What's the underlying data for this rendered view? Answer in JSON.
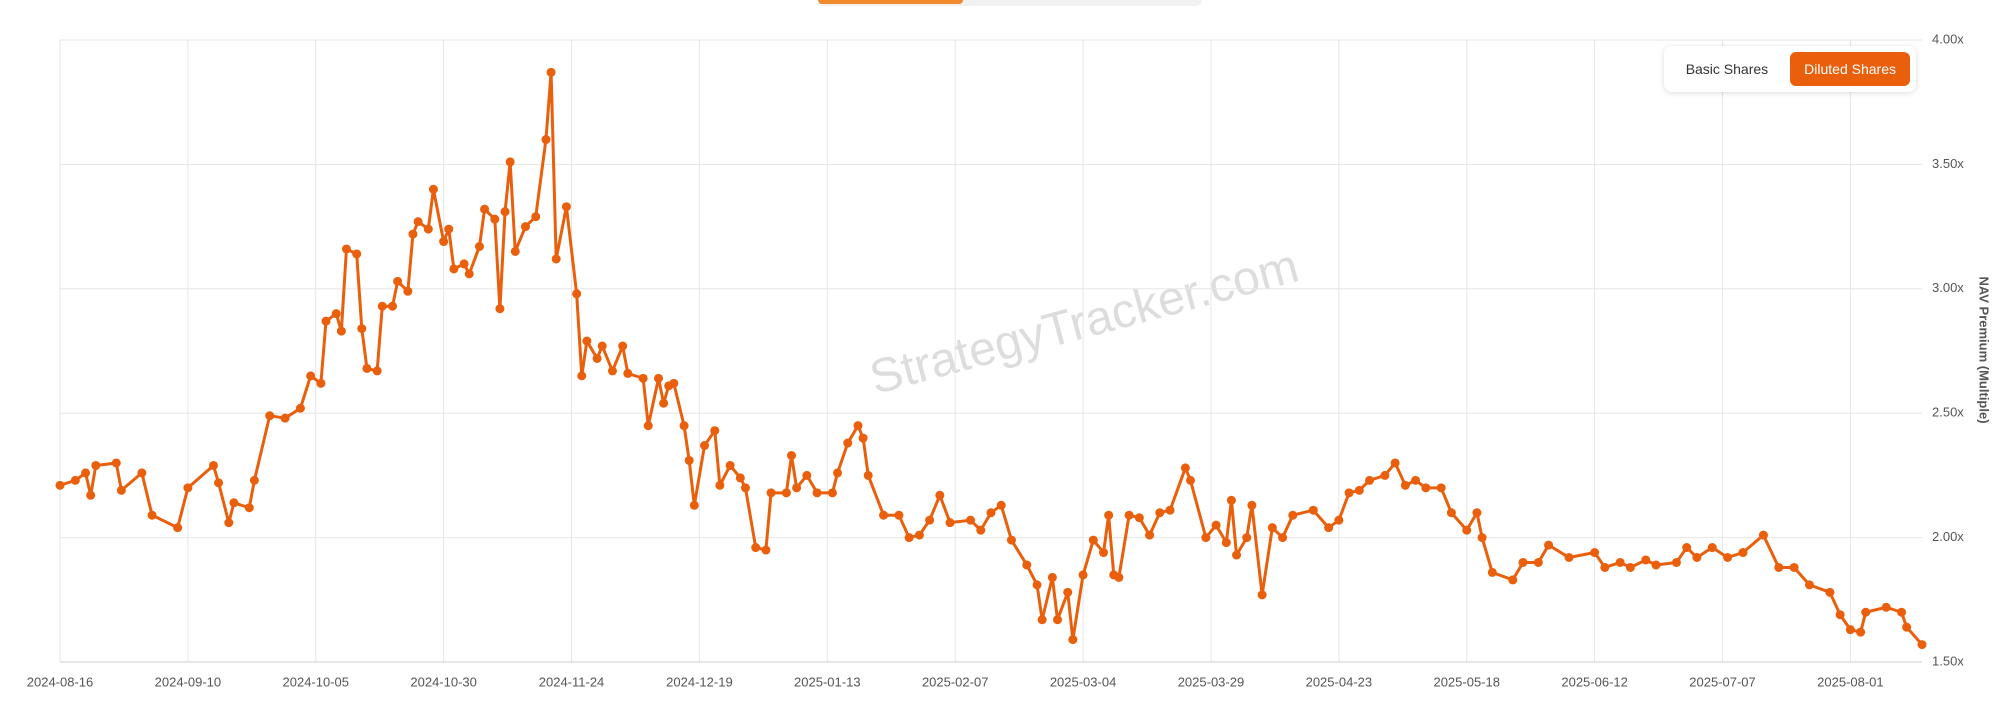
{
  "chart_data": {
    "type": "line",
    "y_label": "NAV Premium (Multiple)",
    "watermark": "StrategyTracker.com",
    "toggle_options": [
      "Basic Shares",
      "Diluted Shares"
    ],
    "active_option": 1,
    "color": "#e95f0c",
    "grid": true,
    "y_axis_side": "right",
    "xlim": [
      "2024-08-16",
      "2025-08-15"
    ],
    "xticks": [
      "2024-08-16",
      "2024-09-10",
      "2024-10-05",
      "2024-10-30",
      "2024-11-24",
      "2024-12-19",
      "2025-01-13",
      "2025-02-07",
      "2025-03-04",
      "2025-03-29",
      "2025-04-23",
      "2025-05-18",
      "2025-06-12",
      "2025-07-07",
      "2025-08-01"
    ],
    "ylim": [
      1.5,
      4
    ],
    "yticks": [
      {
        "value": 1.5,
        "label": "1.50x"
      },
      {
        "value": 2,
        "label": "2.00x"
      },
      {
        "value": 2.5,
        "label": "2.50x"
      },
      {
        "value": 3,
        "label": "3.00x"
      },
      {
        "value": 3.5,
        "label": "3.50x"
      },
      {
        "value": 4,
        "label": "4.00x"
      }
    ],
    "x": [
      "2024-08-16",
      "2024-08-19",
      "2024-08-21",
      "2024-08-22",
      "2024-08-23",
      "2024-08-27",
      "2024-08-28",
      "2024-09-01",
      "2024-09-03",
      "2024-09-08",
      "2024-09-10",
      "2024-09-15",
      "2024-09-16",
      "2024-09-18",
      "2024-09-19",
      "2024-09-22",
      "2024-09-23",
      "2024-09-26",
      "2024-09-29",
      "2024-10-02",
      "2024-10-04",
      "2024-10-06",
      "2024-10-07",
      "2024-10-09",
      "2024-10-10",
      "2024-10-11",
      "2024-10-13",
      "2024-10-14",
      "2024-10-15",
      "2024-10-17",
      "2024-10-18",
      "2024-10-20",
      "2024-10-21",
      "2024-10-23",
      "2024-10-24",
      "2024-10-25",
      "2024-10-27",
      "2024-10-28",
      "2024-10-30",
      "2024-10-31",
      "2024-11-01",
      "2024-11-03",
      "2024-11-04",
      "2024-11-06",
      "2024-11-07",
      "2024-11-09",
      "2024-11-10",
      "2024-11-11",
      "2024-11-12",
      "2024-11-13",
      "2024-11-15",
      "2024-11-17",
      "2024-11-19",
      "2024-11-20",
      "2024-11-21",
      "2024-11-23",
      "2024-11-25",
      "2024-11-26",
      "2024-11-27",
      "2024-11-29",
      "2024-11-30",
      "2024-12-02",
      "2024-12-04",
      "2024-12-05",
      "2024-12-08",
      "2024-12-09",
      "2024-12-11",
      "2024-12-12",
      "2024-12-13",
      "2024-12-14",
      "2024-12-16",
      "2024-12-17",
      "2024-12-18",
      "2024-12-20",
      "2024-12-22",
      "2024-12-23",
      "2024-12-25",
      "2024-12-27",
      "2024-12-28",
      "2024-12-30",
      "2025-01-01",
      "2025-01-02",
      "2025-01-05",
      "2025-01-06",
      "2025-01-07",
      "2025-01-09",
      "2025-01-11",
      "2025-01-14",
      "2025-01-15",
      "2025-01-17",
      "2025-01-19",
      "2025-01-20",
      "2025-01-21",
      "2025-01-24",
      "2025-01-27",
      "2025-01-29",
      "2025-01-31",
      "2025-02-02",
      "2025-02-04",
      "2025-02-06",
      "2025-02-10",
      "2025-02-12",
      "2025-02-14",
      "2025-02-16",
      "2025-02-18",
      "2025-02-21",
      "2025-02-23",
      "2025-02-24",
      "2025-02-26",
      "2025-02-27",
      "2025-03-01",
      "2025-03-02",
      "2025-03-04",
      "2025-03-06",
      "2025-03-08",
      "2025-03-09",
      "2025-03-10",
      "2025-03-11",
      "2025-03-13",
      "2025-03-15",
      "2025-03-17",
      "2025-03-19",
      "2025-03-21",
      "2025-03-24",
      "2025-03-25",
      "2025-03-28",
      "2025-03-30",
      "2025-04-01",
      "2025-04-02",
      "2025-04-03",
      "2025-04-05",
      "2025-04-06",
      "2025-04-08",
      "2025-04-10",
      "2025-04-12",
      "2025-04-14",
      "2025-04-18",
      "2025-04-21",
      "2025-04-23",
      "2025-04-25",
      "2025-04-27",
      "2025-04-29",
      "2025-05-02",
      "2025-05-04",
      "2025-05-06",
      "2025-05-08",
      "2025-05-10",
      "2025-05-13",
      "2025-05-15",
      "2025-05-18",
      "2025-05-20",
      "2025-05-21",
      "2025-05-23",
      "2025-05-27",
      "2025-05-29",
      "2025-06-01",
      "2025-06-03",
      "2025-06-07",
      "2025-06-12",
      "2025-06-14",
      "2025-06-17",
      "2025-06-19",
      "2025-06-22",
      "2025-06-24",
      "2025-06-28",
      "2025-06-30",
      "2025-07-02",
      "2025-07-05",
      "2025-07-08",
      "2025-07-11",
      "2025-07-15",
      "2025-07-18",
      "2025-07-21",
      "2025-07-24",
      "2025-07-28",
      "2025-07-30",
      "2025-08-01",
      "2025-08-03",
      "2025-08-04",
      "2025-08-08",
      "2025-08-11",
      "2025-08-12",
      "2025-08-15"
    ],
    "values": [
      2.21,
      2.23,
      2.26,
      2.17,
      2.29,
      2.3,
      2.19,
      2.26,
      2.09,
      2.04,
      2.2,
      2.29,
      2.22,
      2.06,
      2.14,
      2.12,
      2.23,
      2.49,
      2.48,
      2.52,
      2.65,
      2.62,
      2.87,
      2.9,
      2.83,
      3.16,
      3.14,
      2.84,
      2.68,
      2.67,
      2.93,
      2.93,
      3.03,
      2.99,
      3.22,
      3.27,
      3.24,
      3.4,
      3.19,
      3.24,
      3.08,
      3.1,
      3.06,
      3.17,
      3.32,
      3.28,
      2.92,
      3.31,
      3.51,
      3.15,
      3.25,
      3.29,
      3.6,
      3.87,
      3.12,
      3.33,
      2.98,
      2.65,
      2.79,
      2.72,
      2.77,
      2.67,
      2.77,
      2.66,
      2.64,
      2.45,
      2.64,
      2.54,
      2.61,
      2.62,
      2.45,
      2.31,
      2.13,
      2.37,
      2.43,
      2.21,
      2.29,
      2.24,
      2.2,
      1.96,
      1.95,
      2.18,
      2.18,
      2.33,
      2.2,
      2.25,
      2.18,
      2.18,
      2.26,
      2.38,
      2.45,
      2.4,
      2.25,
      2.09,
      2.09,
      2.0,
      2.01,
      2.07,
      2.17,
      2.06,
      2.07,
      2.03,
      2.1,
      2.13,
      1.99,
      1.89,
      1.81,
      1.67,
      1.84,
      1.67,
      1.78,
      1.59,
      1.85,
      1.99,
      1.94,
      2.09,
      1.85,
      1.84,
      2.09,
      2.08,
      2.01,
      2.1,
      2.11,
      2.28,
      2.23,
      2.0,
      2.05,
      1.98,
      2.15,
      1.93,
      2.0,
      2.13,
      1.77,
      2.04,
      2.0,
      2.09,
      2.11,
      2.04,
      2.07,
      2.18,
      2.19,
      2.23,
      2.25,
      2.3,
      2.21,
      2.23,
      2.2,
      2.2,
      2.1,
      2.03,
      2.1,
      2.0,
      1.86,
      1.83,
      1.9,
      1.9,
      1.97,
      1.92,
      1.94,
      1.88,
      1.9,
      1.88,
      1.91,
      1.89,
      1.9,
      1.96,
      1.92,
      1.96,
      1.92,
      1.94,
      2.01,
      1.88,
      1.88,
      1.81,
      1.78,
      1.69,
      1.63,
      1.62,
      1.7,
      1.72,
      1.7,
      1.64,
      1.57
    ]
  }
}
